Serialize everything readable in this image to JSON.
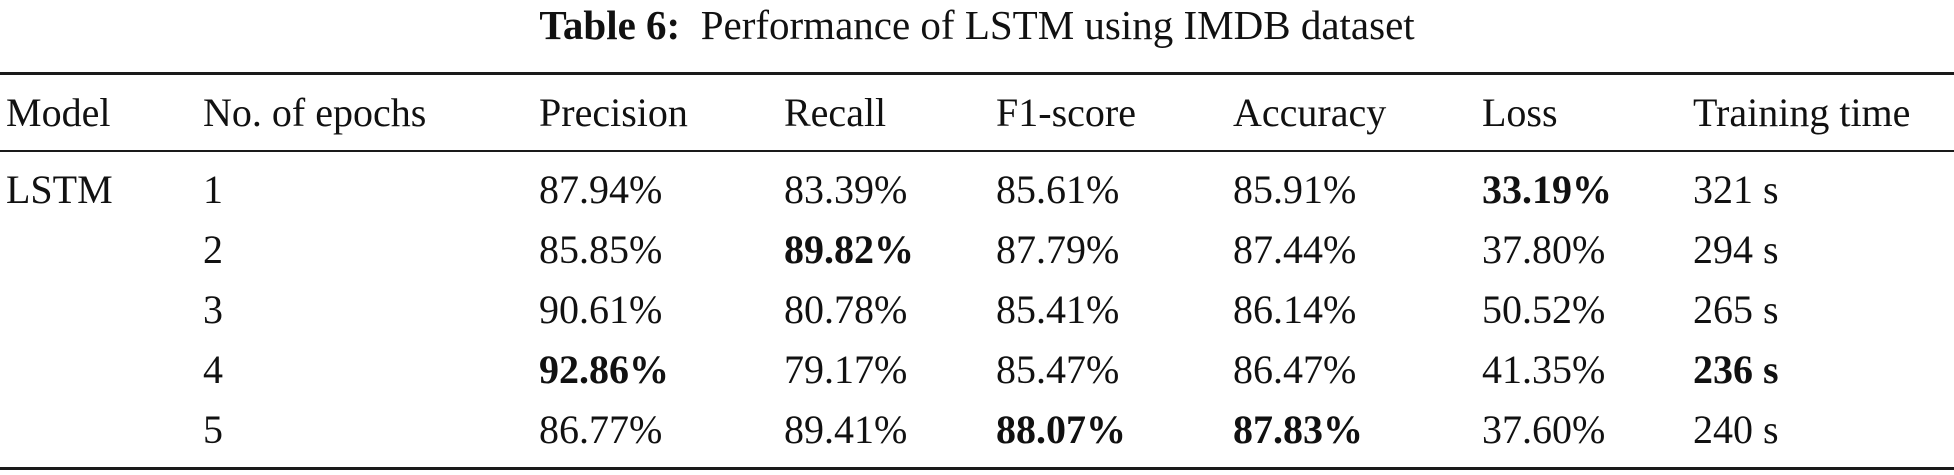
{
  "caption": {
    "label": "Table 6:",
    "text": "Performance of LSTM using IMDB dataset"
  },
  "table": {
    "headers": [
      "Model",
      "No. of epochs",
      "Precision",
      "Recall",
      "F1-score",
      "Accuracy",
      "Loss",
      "Training time"
    ],
    "rows": [
      {
        "model": "LSTM",
        "epochs": "1",
        "precision": "87.94%",
        "recall": "83.39%",
        "f1": "85.61%",
        "accuracy": "85.91%",
        "loss": "33.19%",
        "time": "321 s",
        "bold": [
          "loss"
        ]
      },
      {
        "model": "",
        "epochs": "2",
        "precision": "85.85%",
        "recall": "89.82%",
        "f1": "87.79%",
        "accuracy": "87.44%",
        "loss": "37.80%",
        "time": "294 s",
        "bold": [
          "recall"
        ]
      },
      {
        "model": "",
        "epochs": "3",
        "precision": "90.61%",
        "recall": "80.78%",
        "f1": "85.41%",
        "accuracy": "86.14%",
        "loss": "50.52%",
        "time": "265 s",
        "bold": []
      },
      {
        "model": "",
        "epochs": "4",
        "precision": "92.86%",
        "recall": "79.17%",
        "f1": "85.47%",
        "accuracy": "86.47%",
        "loss": "41.35%",
        "time": "236 s",
        "bold": [
          "precision",
          "time"
        ]
      },
      {
        "model": "",
        "epochs": "5",
        "precision": "86.77%",
        "recall": "89.41%",
        "f1": "88.07%",
        "accuracy": "87.83%",
        "loss": "37.60%",
        "time": "240 s",
        "bold": [
          "f1",
          "accuracy"
        ]
      }
    ]
  }
}
